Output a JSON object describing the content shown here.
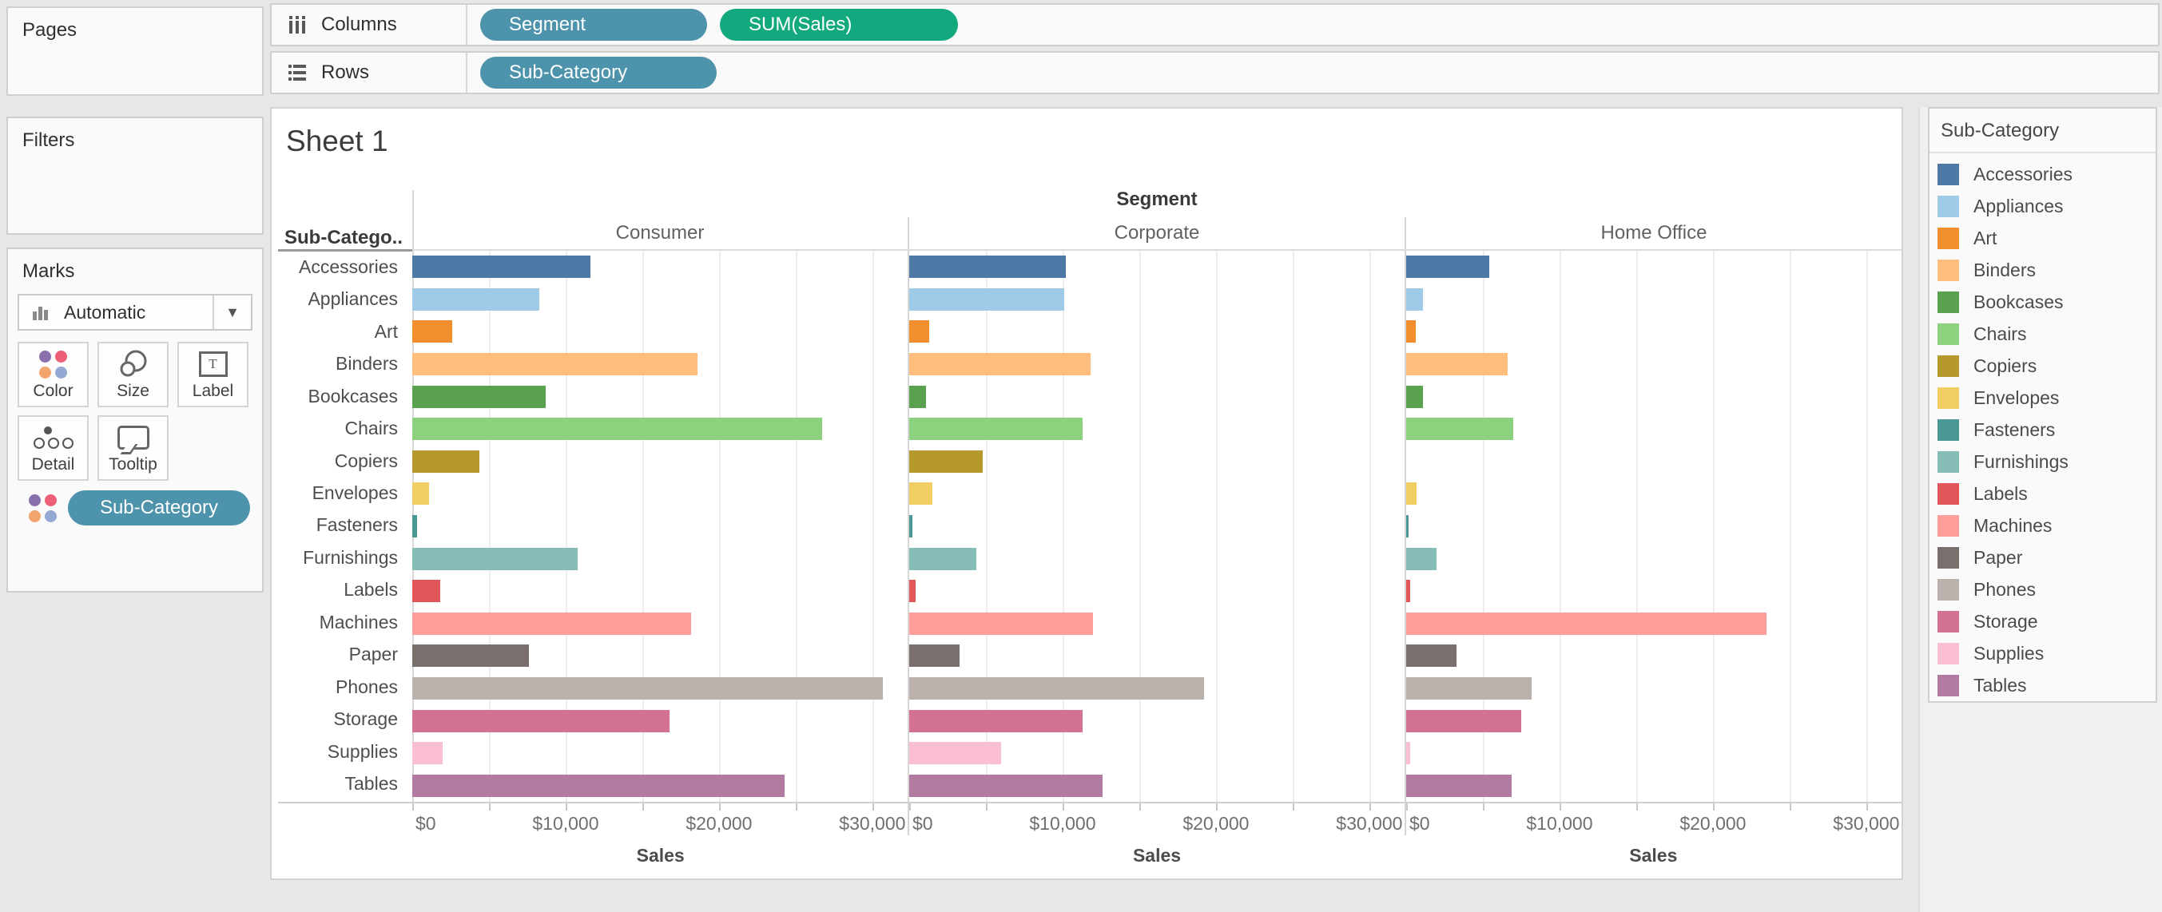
{
  "app": {
    "sheet_title": "Sheet 1"
  },
  "sidebar": {
    "pages_label": "Pages",
    "filters_label": "Filters",
    "marks": {
      "label": "Marks",
      "mark_type": "Automatic",
      "buttons": [
        "Color",
        "Size",
        "Label",
        "Detail",
        "Tooltip"
      ],
      "pill": "Sub-Category"
    }
  },
  "shelves": {
    "columns": {
      "label": "Columns",
      "pills": [
        {
          "text": "Segment",
          "type": "dimension"
        },
        {
          "text": "SUM(Sales)",
          "type": "measure"
        }
      ]
    },
    "rows": {
      "label": "Rows",
      "pills": [
        {
          "text": "Sub-Category",
          "type": "dimension"
        }
      ]
    }
  },
  "pill_colors": {
    "dimension": "#4d93ab",
    "measure": "#13a97e"
  },
  "legend": {
    "title": "Sub-Category",
    "items": [
      {
        "label": "Accessories",
        "color": "#4e79a7"
      },
      {
        "label": "Appliances",
        "color": "#a0cbe8"
      },
      {
        "label": "Art",
        "color": "#f28e2b"
      },
      {
        "label": "Binders",
        "color": "#ffbe7d"
      },
      {
        "label": "Bookcases",
        "color": "#59a14f"
      },
      {
        "label": "Chairs",
        "color": "#8cd17d"
      },
      {
        "label": "Copiers",
        "color": "#b6992d"
      },
      {
        "label": "Envelopes",
        "color": "#f1ce63"
      },
      {
        "label": "Fasteners",
        "color": "#499894"
      },
      {
        "label": "Furnishings",
        "color": "#86bcb6"
      },
      {
        "label": "Labels",
        "color": "#e15759"
      },
      {
        "label": "Machines",
        "color": "#ff9d9a"
      },
      {
        "label": "Paper",
        "color": "#79706e"
      },
      {
        "label": "Phones",
        "color": "#bab0ac"
      },
      {
        "label": "Storage",
        "color": "#d37295"
      },
      {
        "label": "Supplies",
        "color": "#fabfd2"
      },
      {
        "label": "Tables",
        "color": "#b07aa1"
      }
    ]
  },
  "chart_data": {
    "type": "bar",
    "orientation": "horizontal",
    "title": "Sheet 1",
    "col_header": "Segment",
    "row_header": "Sub-Catego..",
    "panels": [
      "Consumer",
      "Corporate",
      "Home Office"
    ],
    "categories": [
      "Accessories",
      "Appliances",
      "Art",
      "Binders",
      "Bookcases",
      "Chairs",
      "Copiers",
      "Envelopes",
      "Fasteners",
      "Furnishings",
      "Labels",
      "Machines",
      "Paper",
      "Phones",
      "Storage",
      "Supplies",
      "Tables"
    ],
    "series": [
      {
        "name": "Consumer",
        "values": [
          11600,
          8300,
          2600,
          18600,
          8700,
          26700,
          4400,
          1100,
          300,
          10800,
          1800,
          18200,
          7600,
          30700,
          16800,
          2000,
          24300
        ]
      },
      {
        "name": "Corporate",
        "values": [
          10200,
          10100,
          1300,
          11800,
          1100,
          11300,
          4800,
          1500,
          200,
          4400,
          400,
          12000,
          3300,
          19200,
          11300,
          6000,
          12600
        ]
      },
      {
        "name": "Home Office",
        "values": [
          5400,
          1100,
          600,
          6600,
          1100,
          7000,
          0,
          700,
          150,
          2000,
          250,
          23500,
          3300,
          8200,
          7500,
          250,
          6900
        ]
      }
    ],
    "xlabel": "Sales",
    "x_ticks": [
      "$0",
      "$10,000",
      "$20,000",
      "$30,000"
    ],
    "x_tick_values": [
      0,
      10000,
      20000,
      30000
    ],
    "gridline_interval": 5000,
    "xlim": [
      0,
      32300
    ],
    "grid": true,
    "legend_position": "right",
    "colors": {
      "Accessories": "#4e79a7",
      "Appliances": "#a0cbe8",
      "Art": "#f28e2b",
      "Binders": "#ffbe7d",
      "Bookcases": "#59a14f",
      "Chairs": "#8cd17d",
      "Copiers": "#b6992d",
      "Envelopes": "#f1ce63",
      "Fasteners": "#499894",
      "Furnishings": "#86bcb6",
      "Labels": "#e15759",
      "Machines": "#ff9d9a",
      "Paper": "#79706e",
      "Phones": "#bab0ac",
      "Storage": "#d37295",
      "Supplies": "#fabfd2",
      "Tables": "#b07aa1"
    }
  },
  "marks_icon_colors": [
    "#8a6fad",
    "#ed5e77",
    "#f2a56d",
    "#93a8d2"
  ]
}
